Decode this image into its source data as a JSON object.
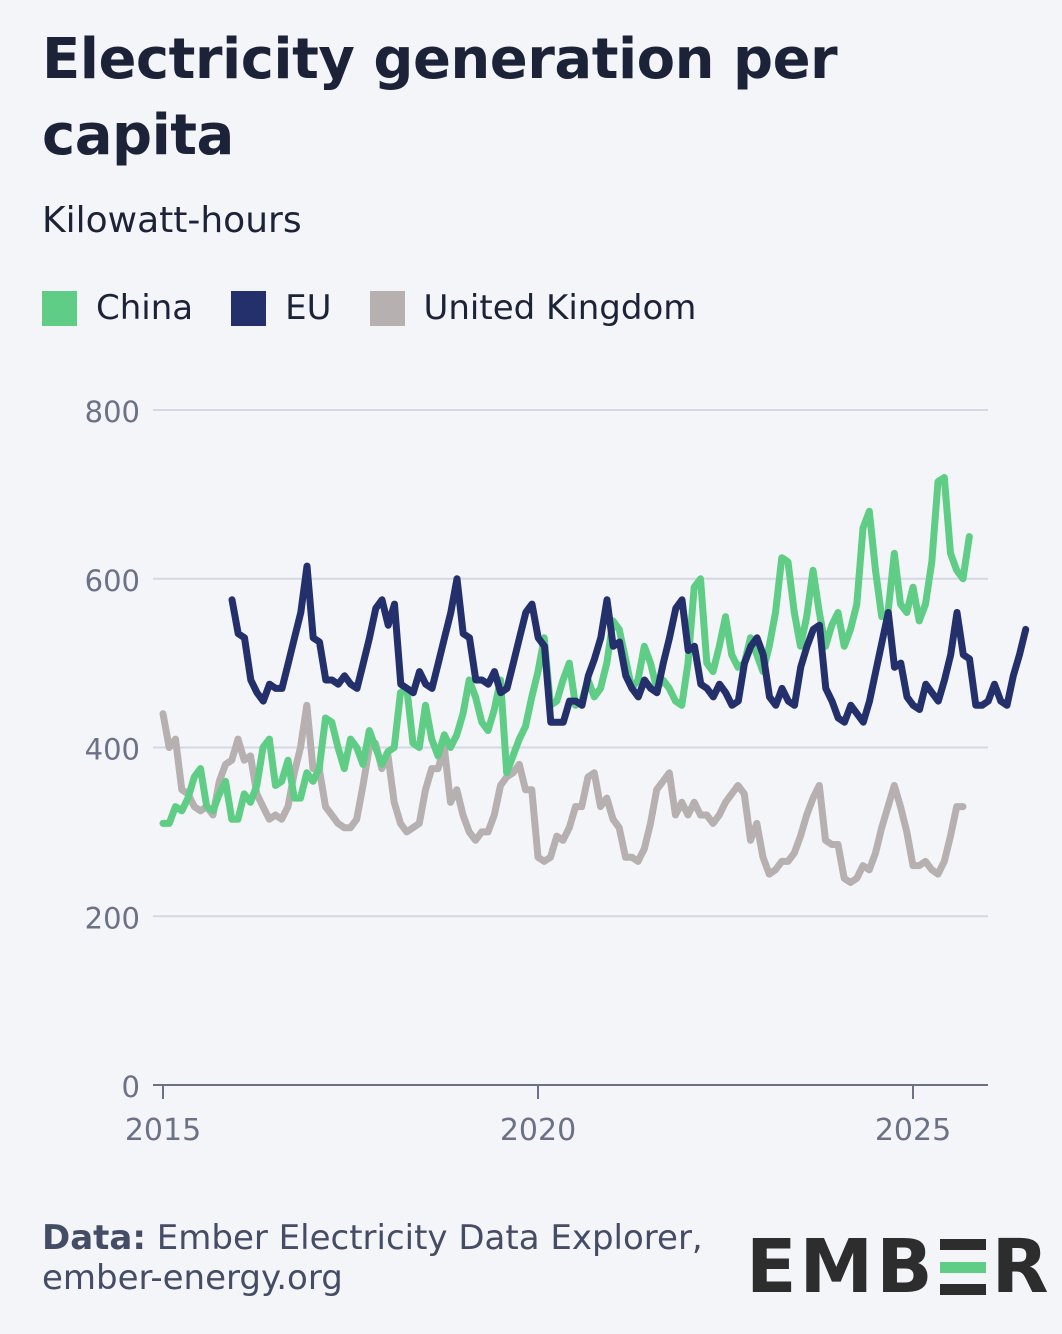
{
  "header": {
    "title": "Electricity generation per capita",
    "subtitle": "Kilowatt-hours"
  },
  "legend": [
    {
      "label": "China",
      "color": "#5fcd85"
    },
    {
      "label": "EU",
      "color": "#24306b"
    },
    {
      "label": "United Kingdom",
      "color": "#b6b0b0"
    }
  ],
  "footer": {
    "source_label": "Data:",
    "source_text": "Ember Electricity Data Explorer,",
    "url": "ember-energy.org"
  },
  "logo": {
    "text_left": "EMB",
    "text_right": "R"
  },
  "chart_data": {
    "type": "line",
    "title": "Electricity generation per capita",
    "ylabel": "Kilowatt-hours",
    "xlabel": "",
    "ylim": [
      0,
      800
    ],
    "yticks": [
      0,
      200,
      400,
      600,
      800
    ],
    "xticks": [
      2015,
      2020,
      2025
    ],
    "xlim": [
      2015,
      2026
    ],
    "grid": true,
    "legend_position": "top",
    "series": [
      {
        "name": "China",
        "color": "#5fcd85",
        "start": 2015,
        "values": [
          310,
          310,
          330,
          325,
          340,
          365,
          375,
          330,
          325,
          345,
          360,
          315,
          315,
          345,
          335,
          355,
          400,
          410,
          355,
          360,
          385,
          340,
          340,
          370,
          360,
          375,
          435,
          430,
          400,
          375,
          410,
          400,
          380,
          420,
          400,
          380,
          395,
          400,
          465,
          470,
          405,
          400,
          450,
          410,
          390,
          415,
          400,
          415,
          440,
          480,
          460,
          430,
          420,
          445,
          480,
          370,
          390,
          410,
          425,
          460,
          490,
          530,
          450,
          455,
          480,
          500,
          450,
          455,
          480,
          460,
          470,
          500,
          550,
          540,
          505,
          470,
          480,
          520,
          500,
          470,
          480,
          470,
          455,
          450,
          500,
          590,
          600,
          500,
          490,
          520,
          555,
          510,
          495,
          500,
          530,
          510,
          490,
          520,
          560,
          625,
          620,
          560,
          520,
          555,
          610,
          560,
          520,
          545,
          560,
          520,
          540,
          570,
          660,
          680,
          610,
          555,
          560,
          630,
          570,
          560,
          590,
          550,
          570,
          620,
          715,
          720,
          630,
          610,
          600,
          650
        ]
      },
      {
        "name": "EU",
        "color": "#24306b",
        "start": 2015.92,
        "values": [
          575,
          535,
          530,
          480,
          465,
          455,
          475,
          470,
          470,
          500,
          530,
          560,
          615,
          530,
          525,
          480,
          480,
          475,
          485,
          475,
          470,
          500,
          530,
          565,
          575,
          545,
          570,
          475,
          470,
          465,
          490,
          475,
          470,
          500,
          530,
          560,
          600,
          535,
          530,
          480,
          480,
          475,
          490,
          465,
          470,
          500,
          530,
          560,
          570,
          530,
          520,
          430,
          430,
          430,
          455,
          455,
          450,
          485,
          505,
          530,
          575,
          520,
          525,
          485,
          470,
          460,
          480,
          470,
          465,
          500,
          530,
          565,
          575,
          515,
          520,
          475,
          470,
          460,
          475,
          465,
          450,
          455,
          500,
          520,
          530,
          510,
          460,
          450,
          470,
          455,
          450,
          495,
          520,
          540,
          545,
          470,
          455,
          435,
          430,
          450,
          440,
          430,
          455,
          490,
          525,
          560,
          495,
          500,
          460,
          450,
          445,
          475,
          465,
          455,
          480,
          510,
          560,
          510,
          505,
          450,
          450,
          455,
          475,
          455,
          450,
          485,
          510,
          540
        ]
      },
      {
        "name": "United Kingdom",
        "color": "#b6b0b0",
        "start": 2015,
        "values": [
          440,
          400,
          410,
          350,
          345,
          330,
          325,
          330,
          320,
          360,
          380,
          385,
          410,
          385,
          390,
          345,
          330,
          315,
          320,
          315,
          330,
          370,
          400,
          450,
          375,
          375,
          330,
          320,
          310,
          305,
          305,
          315,
          355,
          400,
          405,
          375,
          390,
          335,
          310,
          300,
          305,
          310,
          350,
          375,
          375,
          400,
          335,
          350,
          320,
          300,
          290,
          300,
          300,
          320,
          355,
          365,
          370,
          380,
          350,
          350,
          270,
          265,
          270,
          295,
          290,
          305,
          330,
          330,
          365,
          370,
          330,
          340,
          315,
          305,
          270,
          270,
          265,
          280,
          310,
          350,
          360,
          370,
          320,
          335,
          320,
          335,
          320,
          320,
          310,
          320,
          335,
          345,
          355,
          345,
          290,
          310,
          270,
          250,
          255,
          265,
          265,
          275,
          295,
          320,
          340,
          355,
          290,
          285,
          285,
          245,
          240,
          245,
          260,
          255,
          275,
          305,
          330,
          355,
          330,
          300,
          260,
          260,
          265,
          255,
          250,
          265,
          295,
          330,
          330
        ]
      }
    ]
  }
}
